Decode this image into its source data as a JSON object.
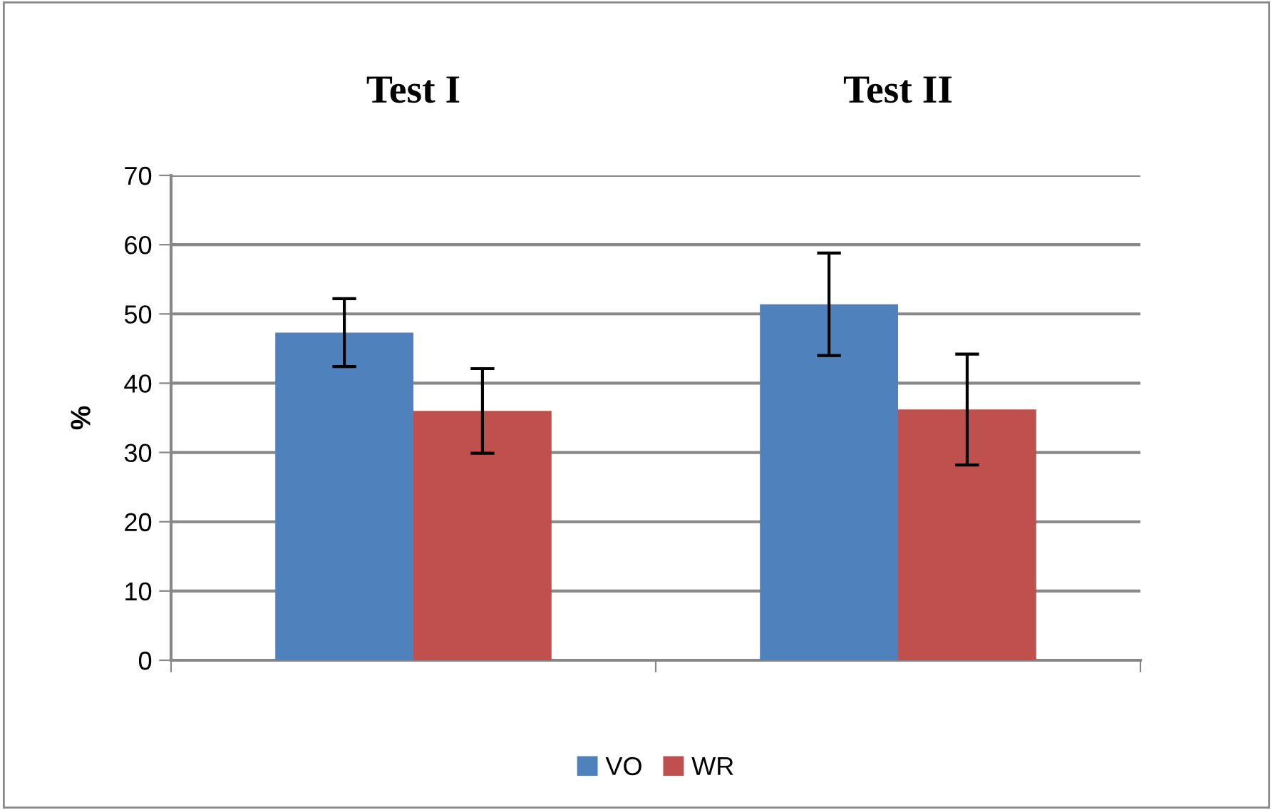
{
  "chart_data": {
    "type": "bar",
    "categories": [
      "Test I",
      "Test II"
    ],
    "ylabel": "%",
    "ylim": [
      0,
      70
    ],
    "yticks": [
      0,
      10,
      20,
      30,
      40,
      50,
      60,
      70
    ],
    "grid": "y",
    "legend": "bottom",
    "series": [
      {
        "name": "VO",
        "color": "#4f81bd",
        "values": [
          47.3,
          51.4
        ],
        "errors": [
          4.9,
          7.4
        ]
      },
      {
        "name": "WR",
        "color": "#c0504d",
        "values": [
          36.0,
          36.2
        ],
        "errors": [
          6.1,
          8.0
        ]
      }
    ]
  }
}
